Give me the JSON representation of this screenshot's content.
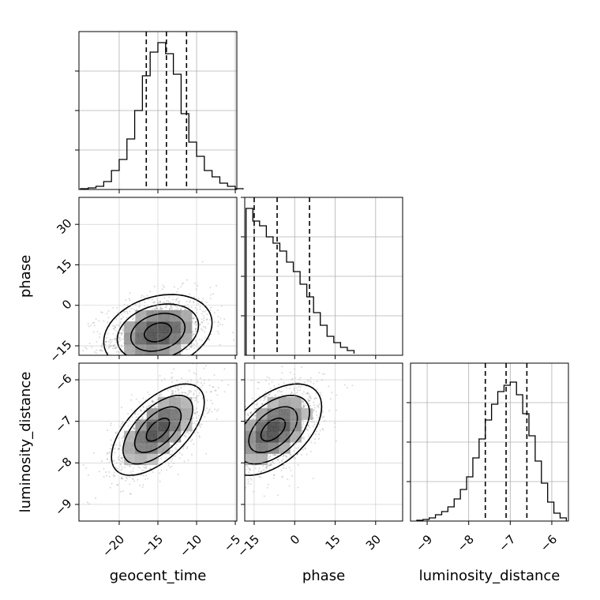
{
  "chart_data": {
    "type": "corner",
    "parameters": [
      "geocent_time",
      "phase",
      "luminosity_distance"
    ],
    "grid": true,
    "histograms": [
      {
        "name": "geocent_time",
        "bins": [
          -25,
          -24,
          -23,
          -22,
          -21,
          -20,
          -19,
          -18,
          -17,
          -16,
          -15,
          -14,
          -13,
          -12,
          -11,
          -10,
          -9,
          -8,
          -7,
          -6,
          -5,
          -4
        ],
        "counts": [
          0.5,
          1,
          2,
          5,
          12,
          19,
          32,
          50,
          72,
          87,
          93,
          86,
          73,
          48,
          30,
          21,
          12,
          8,
          4,
          2,
          0.5
        ],
        "quantiles": [
          -16.5,
          -13.9,
          -11.3
        ],
        "xlim": [
          -25.2,
          -4.8
        ],
        "ylim": [
          0,
          100
        ],
        "yticks": [
          25,
          50,
          75
        ]
      },
      {
        "name": "phase",
        "bins": [
          -18,
          -15.5,
          -13,
          -10.5,
          -8,
          -5.5,
          -3,
          -0.5,
          2,
          4.5,
          7,
          9.5,
          12,
          14.5,
          17,
          19.5,
          22
        ],
        "counts": [
          93,
          85,
          82,
          75,
          71,
          66,
          59,
          53,
          45,
          37,
          27,
          19,
          12,
          8,
          5,
          3,
          1
        ],
        "quantiles": [
          -15,
          -6.5,
          5.5
        ],
        "xlim": [
          -18.5,
          40
        ],
        "ylim": [
          0,
          100
        ],
        "yticks": [
          25,
          50,
          75,
          100
        ]
      },
      {
        "name": "luminosity_distance",
        "bins": [
          -9.25,
          -9.1,
          -8.95,
          -8.8,
          -8.65,
          -8.5,
          -8.35,
          -8.2,
          -8.05,
          -7.9,
          -7.75,
          -7.6,
          -7.45,
          -7.3,
          -7.15,
          -7.0,
          -6.85,
          -6.7,
          -6.55,
          -6.4,
          -6.25,
          -6.1,
          -5.95,
          -5.8,
          -5.65
        ],
        "counts": [
          0.5,
          1,
          2,
          4,
          6,
          9,
          14,
          20,
          28,
          40,
          52,
          64,
          74,
          82,
          86,
          88,
          80,
          68,
          54,
          38,
          24,
          12,
          5,
          2
        ],
        "quantiles": [
          -7.6,
          -7.1,
          -6.6
        ],
        "xlim": [
          -9.4,
          -5.6
        ],
        "ylim": [
          0,
          100
        ],
        "yticks": [
          25,
          50,
          75
        ]
      }
    ],
    "pairs": [
      {
        "x": "geocent_time",
        "y": "phase",
        "center": [
          -15,
          -10
        ],
        "spread": [
          3.5,
          7
        ],
        "correlation": 0.25
      },
      {
        "x": "geocent_time",
        "y": "luminosity_distance",
        "center": [
          -15,
          -7.2
        ],
        "spread": [
          3,
          0.55
        ],
        "correlation": 0.6
      },
      {
        "x": "phase",
        "y": "luminosity_distance",
        "center": [
          -8,
          -7.2
        ],
        "spread": [
          9,
          0.55
        ],
        "correlation": 0.5
      }
    ],
    "axes": {
      "geocent_time": {
        "range": [
          -25.2,
          -4.8
        ],
        "ticks": [
          -20,
          -15,
          -10,
          -5
        ],
        "tick_labels": [
          "−20",
          "−15",
          "−10",
          "−5"
        ]
      },
      "phase": {
        "range": [
          -18.5,
          40
        ],
        "ticks": [
          -15,
          0,
          15,
          30
        ],
        "tick_labels": [
          "−15",
          "0",
          "15",
          "30"
        ]
      },
      "luminosity_distance": {
        "range": [
          -9.4,
          -5.6
        ],
        "ticks": [
          -9,
          -8,
          -7,
          -6
        ],
        "tick_labels": [
          "−9",
          "−8",
          "−7",
          "−6"
        ]
      }
    },
    "xlabels": [
      "geocent_time",
      "phase",
      "luminosity_distance"
    ],
    "ylabels": [
      "",
      "phase",
      "luminosity_distance"
    ]
  }
}
